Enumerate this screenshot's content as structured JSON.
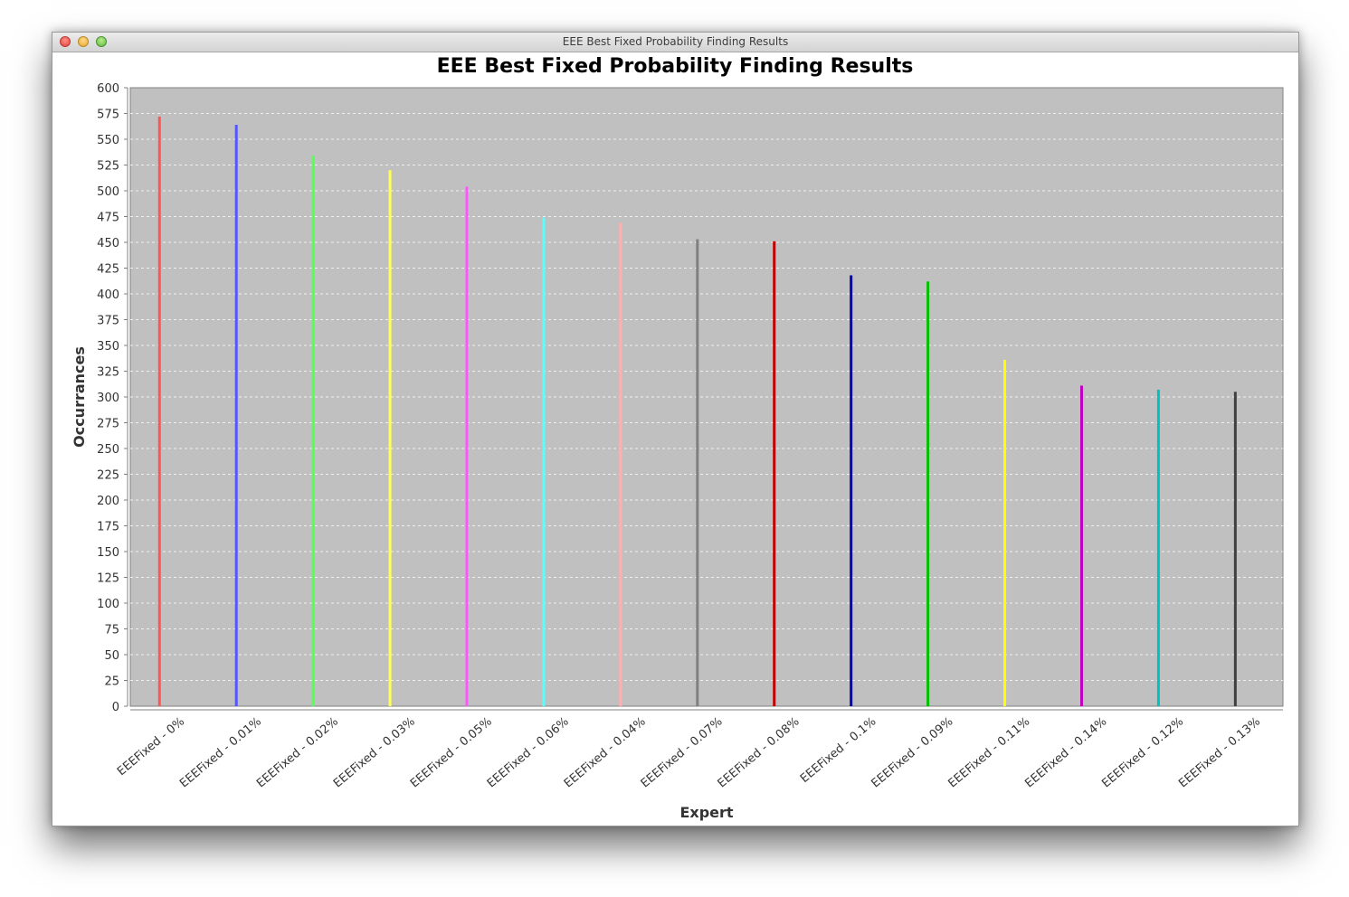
{
  "window": {
    "title": "EEE Best Fixed Probability Finding Results"
  },
  "chart_data": {
    "type": "bar",
    "title": "EEE Best Fixed Probability Finding Results",
    "xlabel": "Expert",
    "ylabel": "Occurrances",
    "ylim": [
      0,
      600
    ],
    "ytick_step": 25,
    "grid": true,
    "legend": "none",
    "categories": [
      "EEEFixed - 0%",
      "EEEFixed - 0.01%",
      "EEEFixed - 0.02%",
      "EEEFixed - 0.03%",
      "EEEFixed - 0.05%",
      "EEEFixed - 0.06%",
      "EEEFixed - 0.04%",
      "EEEFixed - 0.07%",
      "EEEFixed - 0.08%",
      "EEEFixed - 0.1%",
      "EEEFixed - 0.09%",
      "EEEFixed - 0.11%",
      "EEEFixed - 0.14%",
      "EEEFixed - 0.12%",
      "EEEFixed - 0.13%"
    ],
    "values": [
      572,
      564,
      534,
      520,
      504,
      474,
      469,
      453,
      451,
      418,
      412,
      336,
      311,
      307,
      305
    ],
    "colors": [
      "#ff5555",
      "#5555ff",
      "#55ff55",
      "#ffff55",
      "#ff55ff",
      "#55ffff",
      "#ffafaf",
      "#808080",
      "#c00000",
      "#0000c0",
      "#00c000",
      "#ffff00",
      "#c000c0",
      "#00c0c0",
      "#404040"
    ]
  }
}
